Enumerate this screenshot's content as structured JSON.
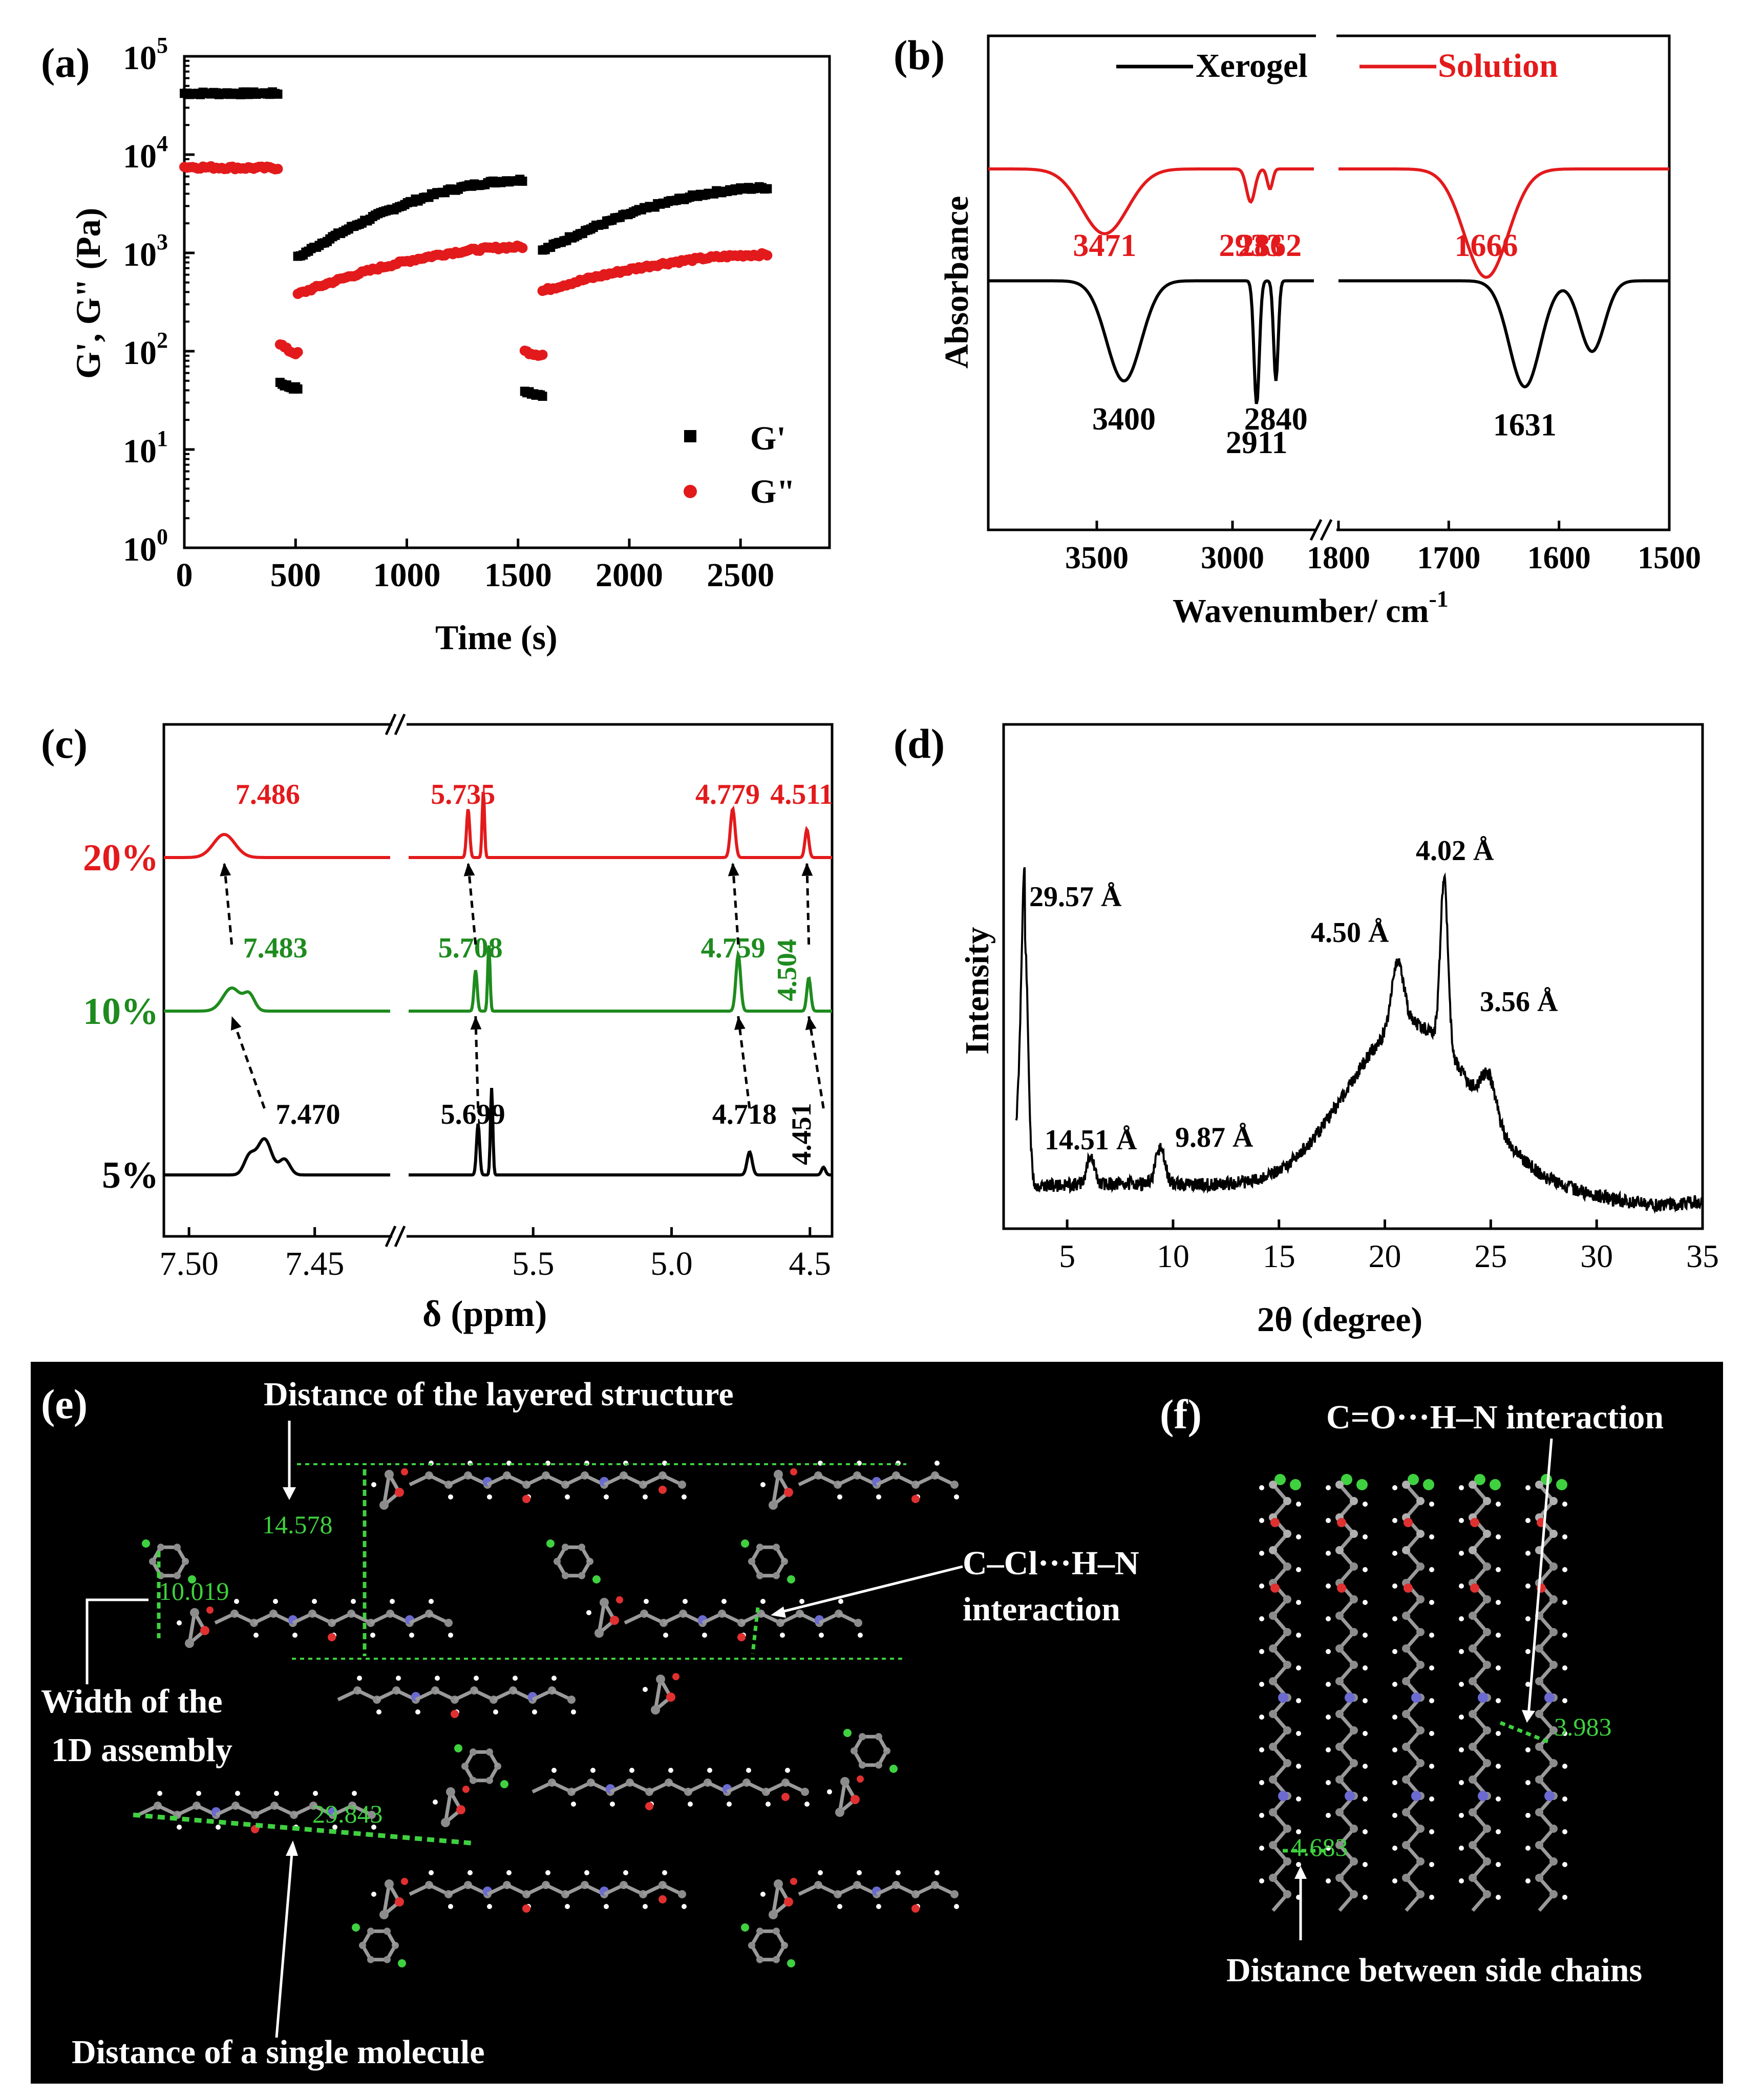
{
  "colors": {
    "black": "#000000",
    "red": "#e31a1c",
    "green": "#1e8b1e",
    "mol_green": "#3fd13f",
    "panel_bg": "#000000"
  },
  "chart_data": [
    {
      "type": "scatter",
      "panel": "(a)",
      "xlabel": "Time (s)",
      "ylabel": "G', G\" (Pa)",
      "xlim": [
        0,
        2900
      ],
      "ylog": true,
      "ylim_exp": [
        0,
        5
      ],
      "xticks": [
        0,
        500,
        1000,
        1500,
        2000,
        2500
      ],
      "yticks": [
        {
          "base": "10",
          "exp": "0"
        },
        {
          "base": "10",
          "exp": "1"
        },
        {
          "base": "10",
          "exp": "2"
        },
        {
          "base": "10",
          "exp": "3"
        },
        {
          "base": "10",
          "exp": "4"
        },
        {
          "base": "10",
          "exp": "5"
        }
      ],
      "legend": [
        {
          "name": "G'",
          "color": "#000000",
          "marker": "square"
        },
        {
          "name": "G\"",
          "color": "#e31a1c",
          "marker": "circle"
        }
      ],
      "series": [
        {
          "name": "G'",
          "color": "#000000",
          "segments": [
            {
              "t0": 0,
              "t1": 420,
              "v0": 42000,
              "v1": 42000
            },
            {
              "t0": 430,
              "t1": 510,
              "v0": 48,
              "v1": 42
            },
            {
              "t0": 510,
              "t1": 1520,
              "v0": 900,
              "v1": 5500
            },
            {
              "t0": 1530,
              "t1": 1610,
              "v0": 40,
              "v1": 36
            },
            {
              "t0": 1610,
              "t1": 2620,
              "v0": 1050,
              "v1": 4600
            }
          ]
        },
        {
          "name": "G\"",
          "color": "#e31a1c",
          "segments": [
            {
              "t0": 0,
              "t1": 420,
              "v0": 7500,
              "v1": 7300
            },
            {
              "t0": 430,
              "t1": 510,
              "v0": 120,
              "v1": 95
            },
            {
              "t0": 510,
              "t1": 1520,
              "v0": 380,
              "v1": 1150
            },
            {
              "t0": 1530,
              "t1": 1610,
              "v0": 100,
              "v1": 92
            },
            {
              "t0": 1610,
              "t1": 2620,
              "v0": 410,
              "v1": 960
            }
          ]
        }
      ]
    },
    {
      "type": "line",
      "panel": "(b)",
      "xlabel": "Wavenumber/ cm",
      "xlabel_sup": "-1",
      "ylabel": "Absorbance",
      "x_break": {
        "left_range": [
          3900,
          2700
        ],
        "right_range": [
          1800,
          1500
        ]
      },
      "xticks_left": [
        3500,
        3000
      ],
      "xticks_right": [
        1800,
        1700,
        1600,
        1500
      ],
      "legend": [
        {
          "name": "Xerogel",
          "color": "#000000"
        },
        {
          "name": "Solution",
          "color": "#e31a1c"
        }
      ],
      "series": [
        {
          "name": "Solution",
          "color": "#e31a1c",
          "baseline": 0.0,
          "peaks": [
            {
              "x": 3471,
              "depth": 0.55,
              "width": 120
            },
            {
              "x": 2933,
              "depth": 0.28,
              "width": 22
            },
            {
              "x": 2862,
              "depth": 0.17,
              "width": 14
            },
            {
              "x": 1666,
              "depth": 0.92,
              "width": 28
            }
          ],
          "labels": [
            {
              "x": 3471,
              "text": "3471"
            },
            {
              "x": 2933,
              "text": "2933"
            },
            {
              "x": 2862,
              "text": "2862"
            },
            {
              "x": 1666,
              "text": "1666"
            }
          ]
        },
        {
          "name": "Xerogel",
          "color": "#000000",
          "baseline": -0.95,
          "peaks": [
            {
              "x": 3400,
              "depth": 0.85,
              "width": 90
            },
            {
              "x": 2911,
              "depth": 1.05,
              "width": 14
            },
            {
              "x": 2840,
              "depth": 0.85,
              "width": 12
            },
            {
              "x": 1631,
              "depth": 0.9,
              "width": 20
            },
            {
              "x": 1570,
              "depth": 0.6,
              "width": 16
            }
          ],
          "labels": [
            {
              "x": 3400,
              "text": "3400"
            },
            {
              "x": 2911,
              "text": "2911"
            },
            {
              "x": 2840,
              "text": "2840"
            },
            {
              "x": 1631,
              "text": "1631"
            }
          ]
        }
      ]
    },
    {
      "type": "line",
      "panel": "(c)",
      "xlabel": "δ (ppm)",
      "x_break": {
        "left_range": [
          7.51,
          7.42
        ],
        "right_range": [
          5.95,
          4.42
        ]
      },
      "xticks_left": [
        "7.50",
        "7.45"
      ],
      "xticks_right": [
        "5.5",
        "5.0",
        "4.5"
      ],
      "series": [
        {
          "name": "20%",
          "color": "#e31a1c",
          "peaks": [
            {
              "x": 7.486,
              "h": 0.9,
              "w": 0.006
            },
            {
              "x": 5.735,
              "h": 1.9,
              "w": 0.008
            },
            {
              "x": 5.68,
              "h": 2.6,
              "w": 0.006
            },
            {
              "x": 4.779,
              "h": 1.9,
              "w": 0.012
            },
            {
              "x": 4.511,
              "h": 1.1,
              "w": 0.01
            }
          ],
          "labels": [
            {
              "x": 7.486,
              "text": "7.486"
            },
            {
              "x": 5.735,
              "text": "5.735"
            },
            {
              "x": 4.779,
              "text": "4.779"
            },
            {
              "x": 4.511,
              "text": "4.511"
            }
          ]
        },
        {
          "name": "10%",
          "color": "#1e8b1e",
          "peaks": [
            {
              "x": 7.483,
              "h": 0.9,
              "w": 0.005
            },
            {
              "x": 7.476,
              "h": 0.6,
              "w": 0.003
            },
            {
              "x": 5.708,
              "h": 1.6,
              "w": 0.008
            },
            {
              "x": 5.66,
              "h": 2.6,
              "w": 0.006
            },
            {
              "x": 4.759,
              "h": 2.2,
              "w": 0.012
            },
            {
              "x": 4.504,
              "h": 1.3,
              "w": 0.01
            }
          ],
          "labels": [
            {
              "x": 7.483,
              "text": "7.483"
            },
            {
              "x": 5.708,
              "text": "5.708"
            },
            {
              "x": 4.759,
              "text": "4.759"
            },
            {
              "x": 4.504,
              "text": "4.504"
            }
          ]
        },
        {
          "name": "5%",
          "color": "#000000",
          "peaks": [
            {
              "x": 7.47,
              "h": 1.4,
              "w": 0.004
            },
            {
              "x": 7.476,
              "h": 0.7,
              "w": 0.003
            },
            {
              "x": 7.462,
              "h": 0.6,
              "w": 0.003
            },
            {
              "x": 5.699,
              "h": 2.0,
              "w": 0.008
            },
            {
              "x": 5.65,
              "h": 3.4,
              "w": 0.006
            },
            {
              "x": 4.718,
              "h": 0.9,
              "w": 0.013
            },
            {
              "x": 4.451,
              "h": 0.3,
              "w": 0.01
            }
          ],
          "labels": [
            {
              "x": 7.47,
              "text": "7.470"
            },
            {
              "x": 5.699,
              "text": "5.699"
            },
            {
              "x": 4.718,
              "text": "4.718"
            },
            {
              "x": 4.451,
              "text": "4.451"
            }
          ]
        }
      ]
    },
    {
      "type": "line",
      "panel": "(d)",
      "xlabel": "2θ (degree)",
      "ylabel": "Intensity",
      "xlim": [
        2,
        35
      ],
      "xticks": [
        5,
        10,
        15,
        20,
        25,
        30,
        35
      ],
      "peaks": [
        {
          "x": 3.0,
          "label": "29.57 Å"
        },
        {
          "x": 6.1,
          "label": "14.51 Å"
        },
        {
          "x": 9.4,
          "label": "9.87 Å"
        },
        {
          "x": 20.6,
          "label": "4.50 Å"
        },
        {
          "x": 22.8,
          "label": "4.02 Å"
        },
        {
          "x": 24.9,
          "label": "3.56 Å"
        }
      ]
    }
  ],
  "panels": {
    "a": {
      "label": "(a)"
    },
    "b": {
      "label": "(b)"
    },
    "c": {
      "label": "(c)"
    },
    "d": {
      "label": "(d)"
    },
    "e": {
      "label": "(e)",
      "title": "Distance of the layered structure",
      "dist_layer": "14.578",
      "dist_width": "10.019",
      "dist_single": "29.843",
      "width_line1": "Width of the",
      "width_line2": "1D assembly",
      "ccl_line1": "C–Cl···H–N",
      "ccl_line2": "interaction",
      "single_label": "Distance of a single molecule"
    },
    "f": {
      "label": "(f)",
      "title": "C=O···H–N interaction",
      "dist_co": "3.983",
      "dist_side": "4.683",
      "side_label": "Distance between side chains"
    }
  }
}
